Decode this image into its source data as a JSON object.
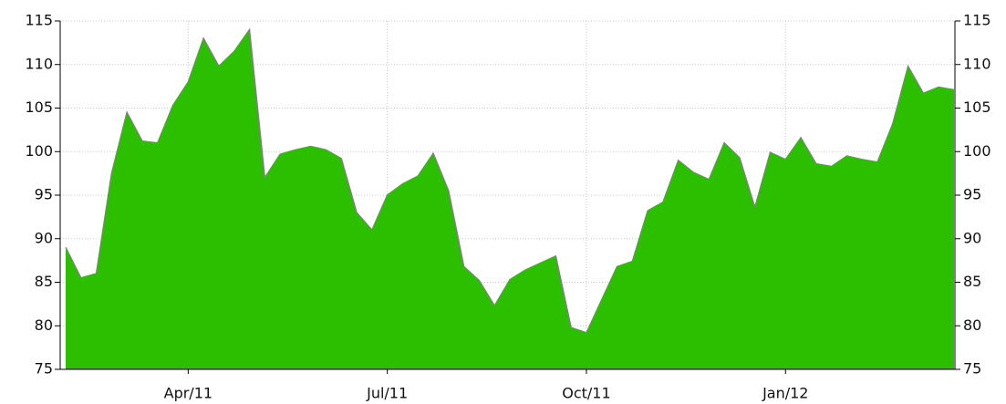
{
  "chart_data": {
    "type": "area",
    "categories": [
      null,
      null,
      null,
      null,
      null,
      null,
      null,
      null,
      "Apr/11",
      null,
      null,
      null,
      null,
      null,
      null,
      null,
      null,
      null,
      null,
      null,
      null,
      "Jul/11",
      null,
      null,
      null,
      null,
      null,
      null,
      null,
      null,
      null,
      null,
      null,
      null,
      "Oct/11",
      null,
      null,
      null,
      null,
      null,
      null,
      null,
      null,
      null,
      null,
      null,
      null,
      "Jan/12",
      null,
      null,
      null,
      null,
      null,
      null,
      null,
      null,
      null,
      null,
      null
    ],
    "values": [
      89,
      85.5,
      86,
      97.5,
      104.5,
      101.2,
      101,
      105.3,
      108,
      113,
      109.8,
      111.5,
      114,
      97,
      99.7,
      100.2,
      100.6,
      100.2,
      99.2,
      93,
      91,
      95,
      96.3,
      97.2,
      99.8,
      95.5,
      86.8,
      85.2,
      82.3,
      85.3,
      86.4,
      87.2,
      88,
      79.8,
      79.2,
      83,
      86.8,
      87.4,
      93.2,
      94.2,
      99,
      97.6,
      96.8,
      101,
      99.3,
      93.6,
      99.9,
      99.1,
      101.6,
      98.6,
      98.3,
      99.5,
      99.1,
      98.8,
      103.2,
      109.8,
      106.7,
      107.4,
      107.1
    ],
    "color": "#2bbf00",
    "line_color": "#808080",
    "ylim": [
      75,
      115
    ],
    "yticks": [
      75,
      80,
      85,
      90,
      95,
      100,
      105,
      110,
      115
    ],
    "y2lim": [
      75,
      115
    ],
    "y2ticks": [
      75,
      80,
      85,
      90,
      95,
      100,
      105,
      110,
      115
    ],
    "grid": true
  }
}
